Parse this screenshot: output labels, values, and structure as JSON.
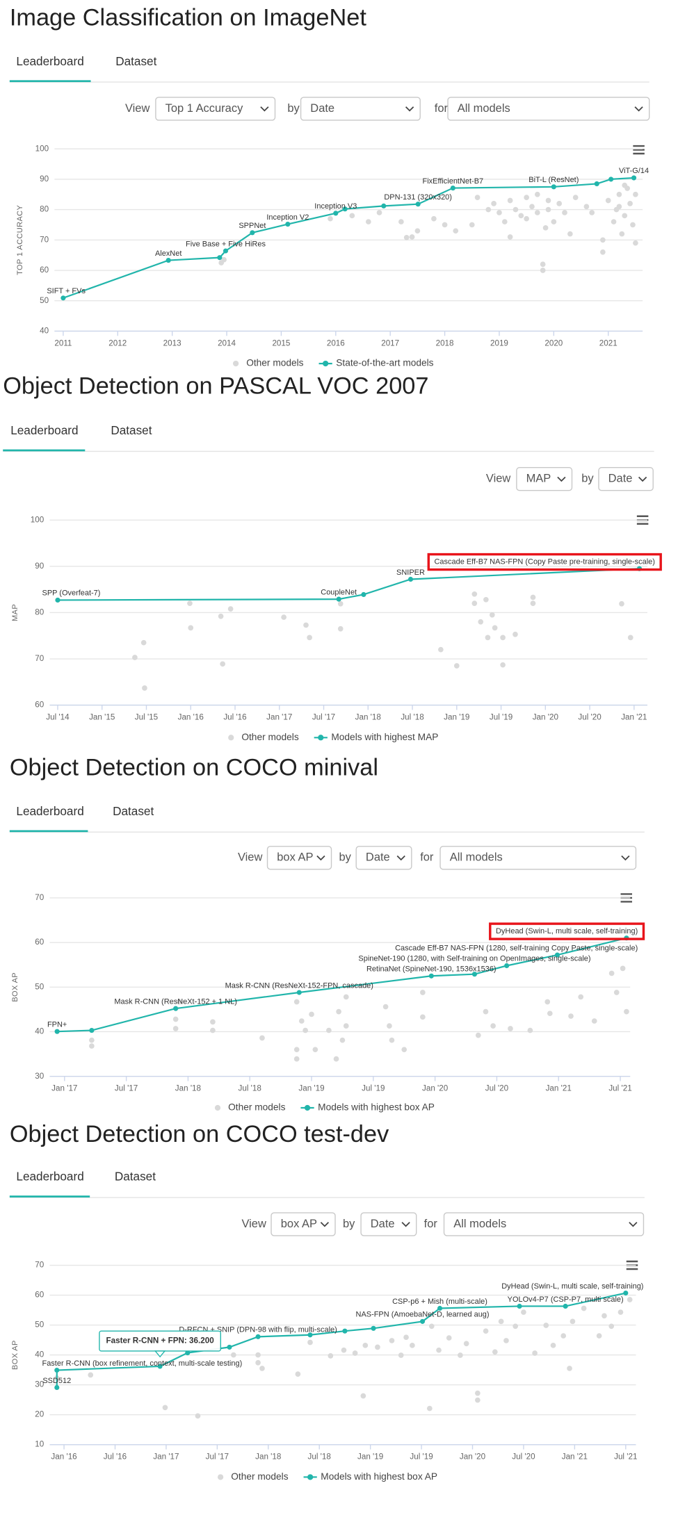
{
  "sections": [
    {
      "title": "Image Classification on ImageNet",
      "tabs": [
        "Leaderboard",
        "Dataset"
      ],
      "controls": {
        "view_label": "View",
        "view": "Top 1 Accuracy",
        "by_label": "by",
        "by": "Date",
        "for_label": "for",
        "for": "All models"
      }
    },
    {
      "title": "Object Detection on PASCAL VOC 2007",
      "tabs": [
        "Leaderboard",
        "Dataset"
      ],
      "controls": {
        "view_label": "View",
        "view": "MAP",
        "by_label": "by",
        "by": "Date"
      }
    },
    {
      "title": "Object Detection on COCO minival",
      "tabs": [
        "Leaderboard",
        "Dataset"
      ],
      "controls": {
        "view_label": "View",
        "view": "box AP",
        "by_label": "by",
        "by": "Date",
        "for_label": "for",
        "for": "All models"
      }
    },
    {
      "title": "Object Detection on COCO test-dev",
      "tabs": [
        "Leaderboard",
        "Dataset"
      ],
      "controls": {
        "view_label": "View",
        "view": "box AP",
        "by_label": "by",
        "by": "Date",
        "for_label": "for",
        "for": "All models"
      }
    }
  ],
  "chart_data": [
    {
      "type": "line",
      "ylabel": "TOP 1 ACCURACY",
      "xlim": [
        2010.84,
        2021.63
      ],
      "xticks": [
        2011,
        2012,
        2013,
        2014,
        2015,
        2016,
        2017,
        2018,
        2019,
        2020,
        2021
      ],
      "ylim": [
        40,
        100
      ],
      "yticks": [
        40,
        50,
        60,
        70,
        80,
        90,
        100
      ],
      "grid": true,
      "legend": "bottom",
      "series": [
        {
          "name": "Other models",
          "type": "scatter",
          "color": "#d9d9d9",
          "x": [
            2013.9,
            2013.95,
            2015.9,
            2016.3,
            2016.6,
            2016.8,
            2017.4,
            2017.5,
            2017.3,
            2017.2,
            2017.8,
            2018.0,
            2018.5,
            2018.6,
            2018.8,
            2018.9,
            2019.0,
            2019.1,
            2019.2,
            2019.3,
            2019.4,
            2019.5,
            2019.5,
            2019.6,
            2019.7,
            2019.7,
            2019.8,
            2019.8,
            2019.85,
            2019.9,
            2019.9,
            2020.0,
            2020.1,
            2020.2,
            2020.3,
            2020.4,
            2020.6,
            2020.7,
            2020.9,
            2020.9,
            2021.0,
            2021.1,
            2021.15,
            2021.2,
            2021.25,
            2021.3,
            2021.35,
            2021.4,
            2021.45,
            2021.5,
            2021.5,
            2021.3,
            2021.2,
            2019.2,
            2018.2
          ],
          "values": [
            62.5,
            63.5,
            77,
            78,
            76,
            79,
            71,
            73,
            70.8,
            76,
            77,
            75,
            75,
            84,
            80,
            82,
            79,
            76,
            83,
            80,
            78,
            84,
            77,
            81,
            79,
            85,
            60,
            62,
            74,
            80,
            83,
            76,
            82,
            79,
            72,
            84,
            81,
            79,
            66,
            70,
            83,
            76,
            80,
            85,
            72,
            78,
            87,
            82,
            75,
            69,
            85,
            88,
            81,
            71,
            73
          ]
        },
        {
          "name": "State-of-the-art models",
          "color": "#21b5ab",
          "x": [
            2011.0,
            2012.93,
            2013.87,
            2013.98,
            2014.47,
            2015.12,
            2016.0,
            2016.17,
            2016.88,
            2017.51,
            2018.15,
            2020.0,
            2020.79,
            2021.05,
            2021.47
          ],
          "values": [
            50.9,
            63.3,
            64.2,
            66.4,
            72.4,
            75.2,
            78.8,
            80.2,
            81.2,
            81.8,
            87.1,
            87.5,
            88.5,
            90.0,
            90.45
          ],
          "labels": [
            "SIFT + FVs",
            "AlexNet",
            null,
            "Five Base + Five HiRes",
            "SPPNet",
            "Inception V2",
            "Inception V3",
            null,
            null,
            "DPN-131 (320x320)",
            "FixEfficientNet-B7",
            "BiT-L (ResNet)",
            null,
            null,
            "ViT-G/14"
          ]
        }
      ]
    },
    {
      "type": "line",
      "ylabel": "MAP",
      "xlim": [
        2014.41,
        2021.15
      ],
      "xticks": [
        {
          "value": 2014.5,
          "label": "Jul '14"
        },
        {
          "value": 2015,
          "label": "Jan '15"
        },
        {
          "value": 2015.5,
          "label": "Jul '15"
        },
        {
          "value": 2016,
          "label": "Jan '16"
        },
        {
          "value": 2016.5,
          "label": "Jul '16"
        },
        {
          "value": 2017,
          "label": "Jan '17"
        },
        {
          "value": 2017.5,
          "label": "Jul '17"
        },
        {
          "value": 2018,
          "label": "Jan '18"
        },
        {
          "value": 2018.5,
          "label": "Jul '18"
        },
        {
          "value": 2019,
          "label": "Jan '19"
        },
        {
          "value": 2019.5,
          "label": "Jul '19"
        },
        {
          "value": 2020,
          "label": "Jan '20"
        },
        {
          "value": 2020.5,
          "label": "Jul '20"
        },
        {
          "value": 2021,
          "label": "Jan '21"
        }
      ],
      "ylim": [
        60,
        100
      ],
      "yticks": [
        60,
        70,
        80,
        90,
        100
      ],
      "grid": true,
      "legend": "bottom",
      "highlight_label": 4,
      "highlight_color": "#e8141b",
      "series": [
        {
          "name": "Other models",
          "type": "scatter",
          "color": "#d9d9d9",
          "x": [
            2015.37,
            2015.47,
            2015.48,
            2015.99,
            2016.0,
            2016.34,
            2016.36,
            2016.45,
            2017.05,
            2017.3,
            2017.34,
            2017.69,
            2017.69,
            2018.82,
            2019.0,
            2019.2,
            2019.2,
            2019.27,
            2019.33,
            2019.35,
            2019.4,
            2019.43,
            2019.52,
            2019.52,
            2019.66,
            2019.86,
            2019.86,
            2020.86,
            2020.96
          ],
          "values": [
            70.3,
            73.5,
            63.7,
            82.0,
            76.7,
            79.2,
            68.9,
            80.8,
            79,
            77.3,
            74.6,
            81.9,
            76.5,
            72,
            68.5,
            84,
            82,
            78,
            82.8,
            74.6,
            79.5,
            76.7,
            68.7,
            74.6,
            75.3,
            83.3,
            82.0,
            81.9,
            74.6
          ]
        },
        {
          "name": "Models with highest MAP",
          "color": "#21b5ab",
          "x": [
            2014.5,
            2017.67,
            2017.95,
            2018.48,
            2021.06
          ],
          "values": [
            82.7,
            82.9,
            83.9,
            87.2,
            89.5
          ],
          "labels": [
            "SPP (Overfeat-7)",
            "CoupleNet",
            null,
            "SNIPER",
            "Cascade Eff-B7 NAS-FPN (Copy Paste pre-training, single-scale)"
          ]
        }
      ]
    },
    {
      "type": "line",
      "ylabel": "BOX AP",
      "xlim": [
        2016.88,
        2021.58
      ],
      "xticks": [
        {
          "value": 2017,
          "label": "Jan '17"
        },
        {
          "value": 2017.5,
          "label": "Jul '17"
        },
        {
          "value": 2018,
          "label": "Jan '18"
        },
        {
          "value": 2018.5,
          "label": "Jul '18"
        },
        {
          "value": 2019,
          "label": "Jan '19"
        },
        {
          "value": 2019.5,
          "label": "Jul '19"
        },
        {
          "value": 2020,
          "label": "Jan '20"
        },
        {
          "value": 2020.5,
          "label": "Jul '20"
        },
        {
          "value": 2021,
          "label": "Jan '21"
        },
        {
          "value": 2021.5,
          "label": "Jul '21"
        }
      ],
      "ylim": [
        30,
        70
      ],
      "yticks": [
        30,
        40,
        50,
        60,
        70
      ],
      "grid": true,
      "legend": "bottom",
      "highlight_label": 8,
      "highlight_color": "#e8141b",
      "series": [
        {
          "name": "Other models",
          "type": "scatter",
          "color": "#d9d9d9",
          "x": [
            2017.22,
            2017.22,
            2017.9,
            2017.9,
            2017.93,
            2018.2,
            2018.2,
            2018.6,
            2018.88,
            2018.88,
            2018.88,
            2018.92,
            2018.95,
            2019.0,
            2019.03,
            2019.14,
            2019.2,
            2019.22,
            2019.25,
            2019.28,
            2019.28,
            2019.6,
            2019.63,
            2019.65,
            2019.75,
            2019.9,
            2019.9,
            2020.35,
            2020.41,
            2020.47,
            2020.61,
            2020.77,
            2020.91,
            2020.93,
            2021.1,
            2021.18,
            2021.29,
            2021.43,
            2021.47,
            2021.52,
            2021.55
          ],
          "values": [
            38.1,
            36.8,
            42.8,
            40.7,
            46.7,
            42.2,
            40.3,
            38.6,
            46.7,
            36,
            33.9,
            42.4,
            40.3,
            43.9,
            36,
            40.3,
            33.9,
            44.5,
            38.1,
            47.8,
            41.3,
            45.6,
            41.3,
            38.1,
            36,
            48.8,
            43.3,
            39.2,
            44.5,
            41.3,
            40.7,
            40.3,
            46.7,
            44.1,
            43.5,
            47.8,
            42.4,
            53.1,
            48.8,
            54.2,
            44.5
          ]
        },
        {
          "name": "Models with highest box AP",
          "color": "#21b5ab",
          "x": [
            2016.94,
            2017.22,
            2017.9,
            2018.9,
            2019.97,
            2020.32,
            2020.58,
            2020.99,
            2021.55
          ],
          "values": [
            40.05,
            40.3,
            45.2,
            48.8,
            52.5,
            52.9,
            54.8,
            57.2,
            61.0
          ],
          "labels": [
            "FPN+",
            null,
            "Mask R-CNN (ResNeXt-152 + 1 NL)",
            "Mask R-CNN (ResNeXt-152-FPN, cascade)",
            "RetinaNet (SpineNet-190, 1536x1536)",
            "SpineNet-190 (1280, with Self-training on OpenImages, single-scale)",
            null,
            "Cascade Eff-B7 NAS-FPN (1280, self-training Copy Paste, single-scale)",
            "DyHead (Swin-L, multi scale, self-training)"
          ]
        }
      ]
    },
    {
      "type": "line",
      "ylabel": "BOX AP",
      "xlim": [
        2015.86,
        2021.6
      ],
      "xticks": [
        {
          "value": 2016,
          "label": "Jan '16"
        },
        {
          "value": 2016.5,
          "label": "Jul '16"
        },
        {
          "value": 2017,
          "label": "Jan '17"
        },
        {
          "value": 2017.5,
          "label": "Jul '17"
        },
        {
          "value": 2018,
          "label": "Jan '18"
        },
        {
          "value": 2018.5,
          "label": "Jul '18"
        },
        {
          "value": 2019,
          "label": "Jan '19"
        },
        {
          "value": 2019.5,
          "label": "Jul '19"
        },
        {
          "value": 2020,
          "label": "Jan '20"
        },
        {
          "value": 2020.5,
          "label": "Jul '20"
        },
        {
          "value": 2021,
          "label": "Jan '21"
        },
        {
          "value": 2021.5,
          "label": "Jul '21"
        }
      ],
      "ylim": [
        10,
        70
      ],
      "yticks": [
        10,
        20,
        30,
        40,
        50,
        60,
        70
      ],
      "grid": true,
      "legend": "bottom",
      "tooltip": {
        "text": "Faster R-CNN + FPN: 36.200",
        "x": 2016.94,
        "y": 36.2
      },
      "series": [
        {
          "name": "Other models",
          "type": "scatter",
          "color": "#d9d9d9",
          "x": [
            2015.93,
            2016.26,
            2016.99,
            2017.31,
            2017.66,
            2017.9,
            2017.9,
            2017.94,
            2018.29,
            2018.41,
            2018.61,
            2018.74,
            2018.85,
            2018.93,
            2018.95,
            2019.07,
            2019.21,
            2019.3,
            2019.35,
            2019.41,
            2019.58,
            2019.6,
            2019.67,
            2019.77,
            2019.88,
            2019.94,
            2020.05,
            2020.05,
            2020.13,
            2020.22,
            2020.28,
            2020.33,
            2020.42,
            2020.5,
            2020.61,
            2020.72,
            2020.79,
            2020.89,
            2020.95,
            2020.98,
            2021.09,
            2021.24,
            2021.29,
            2021.36,
            2021.45,
            2021.54
          ],
          "values": [
            32.3,
            33.3,
            22.4,
            19.6,
            40,
            40,
            37.4,
            35.5,
            33.6,
            44.2,
            39.7,
            41.6,
            40.6,
            26.3,
            43.2,
            42.6,
            44.8,
            39.9,
            45.9,
            43.2,
            22.1,
            49.6,
            41.6,
            45.7,
            39.9,
            43.8,
            27.2,
            24.9,
            48,
            41,
            51.2,
            44.8,
            49.6,
            54.3,
            40.6,
            49.9,
            43.2,
            46.4,
            35.5,
            51.2,
            55.6,
            46.4,
            53.1,
            49.6,
            54.3,
            58.5
          ]
        },
        {
          "name": "Models with highest box AP",
          "color": "#21b5ab",
          "x": [
            2015.93,
            2015.93,
            2016.94,
            2017.21,
            2017.62,
            2017.9,
            2018.41,
            2018.75,
            2019.03,
            2019.51,
            2019.68,
            2020.46,
            2020.91,
            2021.5
          ],
          "values": [
            29.1,
            34.9,
            36.2,
            40.7,
            42.6,
            46.1,
            46.7,
            48.0,
            48.9,
            51.2,
            55.6,
            56.3,
            56.3,
            60.7
          ],
          "labels": [
            "SSD512",
            "Faster R-CNN (box refinement, context, multi-scale testing)",
            null,
            null,
            null,
            "D-RFCN + SNIP (DPN-98 with flip, multi-scale)",
            null,
            null,
            null,
            "NAS-FPN (AmoebaNet-D, learned aug)",
            "CSP-p6 + Mish (multi-scale)",
            null,
            "YOLOv4-P7 (CSP-P7, multi scale)",
            "DyHead (Swin-L, multi scale, self-training)"
          ]
        }
      ]
    }
  ]
}
